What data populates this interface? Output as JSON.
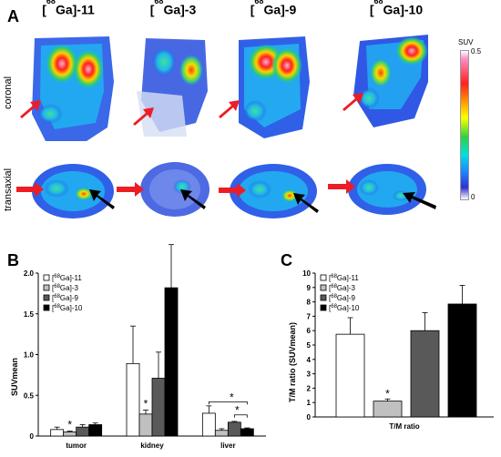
{
  "panel_a": {
    "letter": "A",
    "tracers": [
      {
        "label": "Ga]-11"
      },
      {
        "label": "Ga]-3"
      },
      {
        "label": "Ga]-9"
      },
      {
        "label": "Ga]-10"
      }
    ],
    "tracer_prefix": "[",
    "tracer_mass": "68",
    "row_labels": [
      "coronal",
      "transaxial"
    ],
    "scale": {
      "title": "SUV",
      "max": "0.5",
      "min": "0"
    },
    "colors": {
      "arrow_red": "#ee1c24",
      "arrow_black": "#000000"
    }
  },
  "chart_data": [
    {
      "panel": "B",
      "type": "bar",
      "categories": [
        "tumor",
        "kidney",
        "liver"
      ],
      "ylabel": "SUVmean",
      "ylim": [
        0,
        2.0
      ],
      "yticks": [
        "0",
        "0.5",
        "1.0",
        "1.5",
        "2.0"
      ],
      "legend_position": "top-left",
      "series": [
        {
          "name": "[68Ga]-11",
          "color": "#ffffff",
          "values": [
            0.08,
            0.89,
            0.28
          ],
          "errors": [
            0.03,
            0.46,
            0.09
          ]
        },
        {
          "name": "[68Ga]-3",
          "color": "#c0c0c0",
          "values": [
            0.05,
            0.27,
            0.07
          ],
          "errors": [
            0.01,
            0.05,
            0.02
          ]
        },
        {
          "name": "[68Ga]-9",
          "color": "#595959",
          "values": [
            0.11,
            0.71,
            0.17
          ],
          "errors": [
            0.03,
            0.32,
            0.01
          ]
        },
        {
          "name": "[68Ga]-10",
          "color": "#000000",
          "values": [
            0.14,
            1.82,
            0.09
          ],
          "errors": [
            0.02,
            0.53,
            0.01
          ]
        }
      ],
      "annotations": [
        "*",
        "*",
        "*",
        "*"
      ]
    },
    {
      "panel": "C",
      "type": "bar",
      "categories": [
        "T/M ratio"
      ],
      "ylabel": "T/M ratio (SUVmean)",
      "ylim": [
        0,
        10
      ],
      "yticks": [
        "0",
        "1",
        "2",
        "3",
        "4",
        "5",
        "6",
        "7",
        "8",
        "9",
        "10"
      ],
      "legend_position": "top-left",
      "series": [
        {
          "name": "[68Ga]-11",
          "color": "#ffffff",
          "values": [
            5.75
          ],
          "errors": [
            1.15
          ]
        },
        {
          "name": "[68Ga]-3",
          "color": "#c0c0c0",
          "values": [
            1.1
          ],
          "errors": [
            0.15
          ]
        },
        {
          "name": "[68Ga]-9",
          "color": "#595959",
          "values": [
            6.0
          ],
          "errors": [
            1.25
          ]
        },
        {
          "name": "[68Ga]-10",
          "color": "#000000",
          "values": [
            7.85
          ],
          "errors": [
            1.3
          ]
        }
      ],
      "annotations": [
        "*"
      ]
    }
  ],
  "legend_labels": [
    {
      "prefix": "[",
      "mass": "68",
      "rest": "Ga]-11"
    },
    {
      "prefix": "[",
      "mass": "68",
      "rest": "Ga]-3"
    },
    {
      "prefix": "[",
      "mass": "68",
      "rest": "Ga]-9"
    },
    {
      "prefix": "[",
      "mass": "68",
      "rest": "Ga]-10"
    }
  ]
}
